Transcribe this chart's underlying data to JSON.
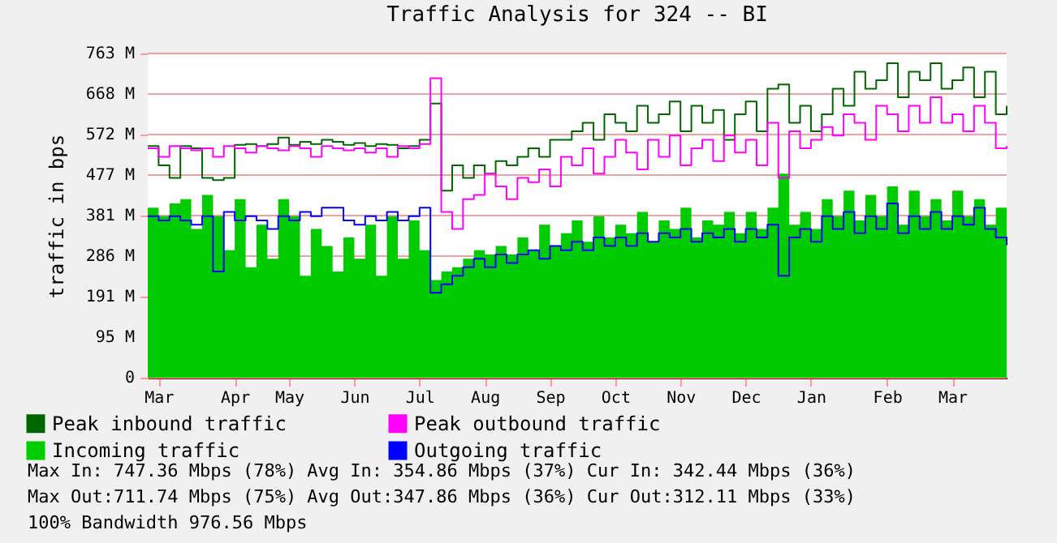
{
  "chart_data": {
    "type": "step",
    "title": "Traffic Analysis for 324 -- BI",
    "ylabel": "traffic in bps",
    "categories": [
      null,
      "Mar",
      null,
      null,
      null,
      null,
      null,
      null,
      "Apr",
      null,
      null,
      null,
      null,
      "May",
      null,
      null,
      null,
      null,
      null,
      "Jun",
      null,
      null,
      null,
      null,
      null,
      "Jul",
      null,
      null,
      null,
      null,
      null,
      "Aug",
      null,
      null,
      null,
      null,
      null,
      "Sep",
      null,
      null,
      null,
      null,
      null,
      "Oct",
      null,
      null,
      null,
      null,
      null,
      "Nov",
      null,
      null,
      null,
      null,
      null,
      "Dec",
      null,
      null,
      null,
      null,
      null,
      "Jan",
      null,
      null,
      null,
      null,
      null,
      null,
      "Feb",
      null,
      null,
      null,
      null,
      null,
      "Mar",
      null,
      null,
      null,
      null,
      null
    ],
    "series": [
      {
        "name": "Peak inbound traffic",
        "type": "step",
        "color": "#006600",
        "values": [
          545,
          500,
          470,
          545,
          540,
          470,
          465,
          470,
          548,
          550,
          545,
          550,
          565,
          548,
          555,
          550,
          560,
          555,
          548,
          552,
          545,
          550,
          548,
          540,
          545,
          560,
          645,
          440,
          500,
          470,
          500,
          480,
          510,
          500,
          520,
          540,
          520,
          560,
          560,
          580,
          600,
          560,
          620,
          600,
          580,
          640,
          600,
          620,
          650,
          580,
          640,
          600,
          630,
          560,
          620,
          650,
          580,
          680,
          690,
          600,
          640,
          580,
          620,
          680,
          640,
          720,
          680,
          700,
          740,
          660,
          720,
          700,
          740,
          680,
          700,
          730,
          660,
          720,
          620,
          640
        ]
      },
      {
        "name": "Incoming traffic",
        "type": "area",
        "color": "#00cc00",
        "values": [
          400,
          380,
          410,
          420,
          350,
          430,
          380,
          300,
          420,
          260,
          360,
          280,
          420,
          380,
          240,
          350,
          310,
          250,
          330,
          280,
          360,
          240,
          380,
          280,
          370,
          300,
          230,
          250,
          260,
          280,
          300,
          290,
          310,
          290,
          330,
          300,
          360,
          310,
          340,
          370,
          320,
          380,
          330,
          360,
          340,
          390,
          320,
          370,
          350,
          400,
          330,
          370,
          360,
          390,
          340,
          390,
          350,
          400,
          480,
          360,
          390,
          350,
          420,
          380,
          440,
          370,
          430,
          380,
          450,
          360,
          440,
          380,
          420,
          370,
          440,
          380,
          420,
          360,
          400,
          340
        ]
      },
      {
        "name": "Peak outbound traffic",
        "type": "step",
        "color": "#ff00ff",
        "values": [
          540,
          520,
          545,
          540,
          535,
          540,
          520,
          545,
          540,
          530,
          545,
          540,
          535,
          545,
          540,
          520,
          545,
          540,
          535,
          540,
          530,
          540,
          520,
          545,
          540,
          550,
          705,
          390,
          350,
          420,
          430,
          480,
          450,
          420,
          470,
          460,
          490,
          450,
          520,
          500,
          540,
          480,
          520,
          560,
          530,
          490,
          560,
          520,
          570,
          500,
          540,
          560,
          510,
          570,
          530,
          560,
          500,
          600,
          470,
          580,
          540,
          560,
          590,
          570,
          620,
          600,
          560,
          640,
          620,
          580,
          640,
          600,
          660,
          600,
          620,
          580,
          640,
          600,
          540,
          545
        ]
      },
      {
        "name": "Outgoing traffic",
        "type": "step",
        "color": "#0000ff",
        "values": [
          380,
          370,
          380,
          370,
          360,
          380,
          250,
          390,
          370,
          380,
          370,
          350,
          380,
          370,
          390,
          380,
          400,
          400,
          370,
          360,
          380,
          370,
          390,
          370,
          380,
          400,
          200,
          220,
          240,
          260,
          280,
          260,
          290,
          270,
          290,
          300,
          280,
          310,
          300,
          320,
          300,
          330,
          310,
          330,
          310,
          340,
          320,
          340,
          330,
          350,
          320,
          340,
          330,
          350,
          320,
          350,
          330,
          360,
          240,
          330,
          350,
          320,
          380,
          350,
          390,
          340,
          380,
          350,
          410,
          340,
          380,
          350,
          390,
          350,
          380,
          360,
          400,
          350,
          330,
          312
        ]
      }
    ],
    "ylim": [
      0,
      763
    ],
    "yticks": [
      0,
      {
        "value": 95.4,
        "label": "95 M"
      },
      {
        "value": 190.7,
        "label": "191 M"
      },
      {
        "value": 286.1,
        "label": "286 M"
      },
      {
        "value": 381.5,
        "label": "381 M"
      },
      {
        "value": 476.9,
        "label": "477 M"
      },
      {
        "value": 572.2,
        "label": "572 M"
      },
      {
        "value": 667.6,
        "label": "668 M"
      },
      {
        "value": 763,
        "label": "763 M"
      }
    ],
    "grid": "y",
    "legend": "bottom left",
    "annotations": [
      "Max In: 747.36 Mbps (78%)  Avg In: 354.86 Mbps (37%)  Cur In: 342.44 Mbps (36%)",
      "Max Out:711.74 Mbps (75%)  Avg Out:347.86 Mbps (36%)  Cur Out:312.11 Mbps (33%)",
      "100% Bandwidth 976.56 Mbps"
    ]
  }
}
